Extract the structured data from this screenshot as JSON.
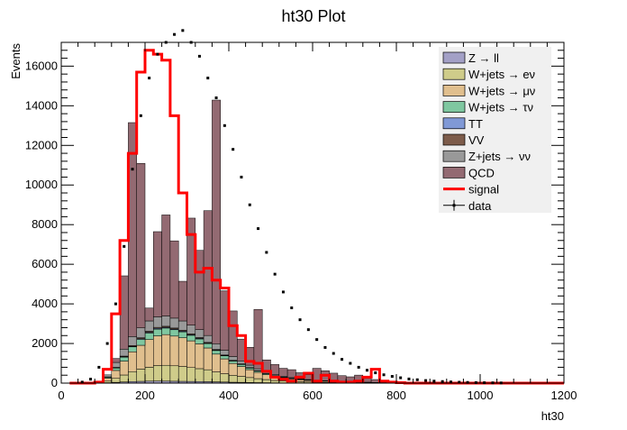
{
  "chart_data": {
    "type": "stacked-histogram",
    "title": "ht30 Plot",
    "xlabel": "ht30",
    "ylabel": "Events",
    "xlim": [
      0,
      1200
    ],
    "ylim": [
      0,
      17200
    ],
    "bin_width": 20,
    "x_ticks": [
      0,
      200,
      400,
      600,
      800,
      1000,
      1200
    ],
    "y_ticks": [
      0,
      2000,
      4000,
      6000,
      8000,
      10000,
      12000,
      14000,
      16000
    ],
    "legend_position": "top-right",
    "stack_bins": [
      60,
      80,
      100,
      120,
      140,
      160,
      180,
      200,
      220,
      240,
      260,
      280,
      300,
      320,
      340,
      360,
      380,
      400,
      420,
      440,
      460,
      480,
      500,
      520,
      540,
      560,
      580,
      600,
      620,
      640,
      660,
      680,
      700,
      720,
      740,
      760,
      780
    ],
    "series": [
      {
        "name": "Z → ll",
        "color": "#a3a0c6",
        "values": [
          0,
          5,
          20,
          40,
          60,
          80,
          90,
          100,
          105,
          100,
          95,
          90,
          85,
          80,
          75,
          65,
          55,
          45,
          40,
          30,
          25,
          20,
          15,
          12,
          10,
          8,
          6,
          5,
          5,
          4,
          3,
          3,
          2,
          2,
          1,
          1,
          1
        ]
      },
      {
        "name": "W+jets → eν",
        "color": "#cfcc8a",
        "values": [
          0,
          15,
          80,
          200,
          350,
          500,
          620,
          700,
          780,
          800,
          780,
          750,
          700,
          650,
          600,
          500,
          420,
          350,
          300,
          250,
          200,
          160,
          120,
          100,
          80,
          60,
          50,
          40,
          35,
          30,
          20,
          20,
          15,
          15,
          10,
          8,
          5
        ]
      },
      {
        "name": "W+jets → μν",
        "color": "#e0bf8e",
        "values": [
          0,
          30,
          150,
          400,
          700,
          1000,
          1200,
          1400,
          1500,
          1550,
          1500,
          1450,
          1350,
          1250,
          1100,
          900,
          750,
          600,
          500,
          400,
          320,
          250,
          190,
          150,
          120,
          100,
          80,
          65,
          55,
          45,
          35,
          30,
          25,
          20,
          15,
          12,
          8
        ]
      },
      {
        "name": "W+jets → τν",
        "color": "#7fc7a0",
        "values": [
          0,
          10,
          50,
          120,
          200,
          250,
          300,
          330,
          340,
          330,
          320,
          300,
          280,
          250,
          220,
          180,
          150,
          120,
          100,
          80,
          60,
          50,
          40,
          30,
          25,
          20,
          15,
          12,
          10,
          8,
          6,
          5,
          4,
          3,
          2,
          2,
          1
        ]
      },
      {
        "name": "TT",
        "color": "#8099d6",
        "values": [
          0,
          2,
          8,
          15,
          25,
          30,
          35,
          40,
          40,
          40,
          38,
          35,
          32,
          30,
          25,
          22,
          20,
          18,
          15,
          12,
          10,
          8,
          6,
          5,
          4,
          3,
          3,
          2,
          2,
          2,
          1,
          1,
          1,
          1,
          0,
          0,
          0
        ]
      },
      {
        "name": "VV",
        "color": "#7d5c4b",
        "values": [
          0,
          2,
          10,
          20,
          30,
          40,
          45,
          50,
          50,
          50,
          48,
          45,
          42,
          40,
          35,
          30,
          25,
          20,
          18,
          15,
          12,
          10,
          8,
          6,
          5,
          4,
          3,
          3,
          2,
          2,
          1,
          1,
          1,
          1,
          0,
          0,
          0
        ]
      },
      {
        "name": "Z+jets → νν",
        "color": "#999999",
        "values": [
          0,
          20,
          100,
          250,
          350,
          450,
          500,
          520,
          530,
          520,
          500,
          470,
          440,
          400,
          350,
          290,
          240,
          190,
          150,
          120,
          95,
          75,
          60,
          45,
          35,
          30,
          25,
          20,
          15,
          12,
          10,
          8,
          6,
          5,
          4,
          3,
          2
        ]
      },
      {
        "name": "QCD",
        "color": "#936a72",
        "values": [
          0,
          0,
          0,
          200,
          3700,
          10800,
          8300,
          650,
          4300,
          5100,
          3900,
          2000,
          5400,
          4000,
          6300,
          12300,
          3000,
          2300,
          1100,
          900,
          3000,
          600,
          500,
          400,
          400,
          300,
          250,
          600,
          500,
          400,
          300,
          250,
          350,
          200,
          150,
          100,
          80
        ]
      }
    ],
    "signal": {
      "name": "signal",
      "color": "#ff0000",
      "x": [
        20,
        40,
        60,
        80,
        100,
        120,
        140,
        160,
        180,
        200,
        220,
        240,
        260,
        280,
        300,
        320,
        340,
        360,
        380,
        400,
        420,
        440,
        460,
        480,
        500,
        520,
        540,
        560,
        580,
        600,
        620,
        640,
        660,
        680,
        700,
        720,
        740,
        760,
        780,
        800,
        820,
        840,
        860,
        880,
        900,
        920,
        940,
        960,
        980,
        1000,
        1020,
        1040,
        1060,
        1080,
        1100,
        1120,
        1140,
        1160,
        1180
      ],
      "values": [
        0,
        0,
        0,
        50,
        700,
        3500,
        7200,
        11600,
        15700,
        16800,
        16600,
        16300,
        13500,
        9600,
        7500,
        5600,
        5800,
        5200,
        4800,
        2900,
        2400,
        1100,
        1000,
        600,
        300,
        200,
        100,
        300,
        500,
        100,
        400,
        100,
        50,
        50,
        100,
        300,
        700,
        100,
        50,
        20,
        0,
        0,
        0,
        0,
        0,
        0,
        0,
        0,
        0,
        0,
        0,
        0,
        0,
        0,
        0,
        0,
        0,
        0,
        0
      ]
    },
    "data_points": {
      "name": "data",
      "x": [
        30,
        50,
        70,
        90,
        110,
        130,
        150,
        170,
        190,
        210,
        230,
        250,
        270,
        290,
        310,
        330,
        350,
        370,
        390,
        410,
        430,
        450,
        470,
        490,
        510,
        530,
        550,
        570,
        590,
        610,
        630,
        650,
        670,
        690,
        710,
        730,
        750,
        770,
        790,
        810,
        830,
        850,
        870,
        890,
        910,
        930,
        950,
        970,
        990,
        1010,
        1030,
        1050
      ],
      "y": [
        0,
        50,
        200,
        800,
        2000,
        4000,
        6900,
        10800,
        13500,
        15400,
        16600,
        17200,
        17600,
        17800,
        17200,
        16500,
        15400,
        14400,
        13000,
        11800,
        10400,
        9000,
        7800,
        6600,
        5500,
        4600,
        3800,
        3200,
        2700,
        2200,
        1800,
        1500,
        1200,
        1000,
        800,
        650,
        520,
        420,
        340,
        270,
        210,
        170,
        130,
        100,
        80,
        60,
        45,
        35,
        25,
        20,
        15,
        10
      ]
    }
  }
}
